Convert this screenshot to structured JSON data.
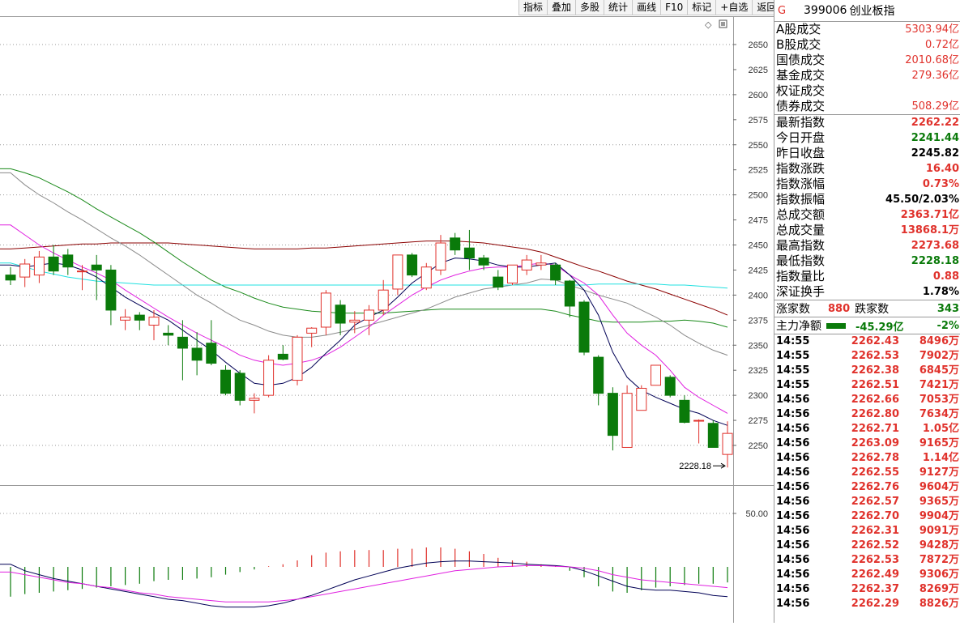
{
  "toolbar": {
    "buttons": [
      "指标",
      "叠加",
      "多股",
      "统计",
      "画线",
      "F10",
      "标记",
      "+自选",
      "返回"
    ]
  },
  "header": {
    "marker": "G",
    "code": "399006",
    "name": "创业板指"
  },
  "turnover": [
    {
      "label": "A股成交",
      "value": "5303.94亿"
    },
    {
      "label": "B股成交",
      "value": "0.72亿"
    },
    {
      "label": "国债成交",
      "value": "2010.68亿"
    },
    {
      "label": "基金成交",
      "value": "279.36亿"
    },
    {
      "label": "权证成交",
      "value": ""
    },
    {
      "label": "债券成交",
      "value": "508.29亿"
    }
  ],
  "quote": [
    {
      "label": "最新指数",
      "value": "2262.22",
      "color": "red"
    },
    {
      "label": "今日开盘",
      "value": "2241.44",
      "color": "green"
    },
    {
      "label": "昨日收盘",
      "value": "2245.82",
      "color": "black"
    },
    {
      "label": "指数涨跌",
      "value": "16.40",
      "color": "red"
    },
    {
      "label": "指数涨幅",
      "value": "0.73%",
      "color": "red"
    },
    {
      "label": "指数振幅",
      "value": "45.50/2.03%",
      "color": "black"
    },
    {
      "label": "总成交额",
      "value": "2363.71亿",
      "color": "red"
    },
    {
      "label": "总成交量",
      "value": "13868.1万",
      "color": "red"
    },
    {
      "label": "最高指数",
      "value": "2273.68",
      "color": "red"
    },
    {
      "label": "最低指数",
      "value": "2228.18",
      "color": "green"
    },
    {
      "label": "指数量比",
      "value": "0.88",
      "color": "red"
    },
    {
      "label": "深证换手",
      "value": "1.78%",
      "color": "black"
    }
  ],
  "breadth": {
    "up_label": "涨家数",
    "up_value": "880",
    "down_label": "跌家数",
    "down_value": "343"
  },
  "flow": {
    "label": "主力净额",
    "value": "-45.29亿",
    "pct": "-2%"
  },
  "ticks": [
    {
      "time": "14:55",
      "price": "2262.43",
      "amount": "8496万"
    },
    {
      "time": "14:55",
      "price": "2262.53",
      "amount": "7902万"
    },
    {
      "time": "14:55",
      "price": "2262.38",
      "amount": "6845万"
    },
    {
      "time": "14:55",
      "price": "2262.51",
      "amount": "7421万"
    },
    {
      "time": "14:56",
      "price": "2262.66",
      "amount": "7053万"
    },
    {
      "time": "14:56",
      "price": "2262.80",
      "amount": "7634万"
    },
    {
      "time": "14:56",
      "price": "2262.71",
      "amount": "1.05亿"
    },
    {
      "time": "14:56",
      "price": "2263.09",
      "amount": "9165万"
    },
    {
      "time": "14:56",
      "price": "2262.78",
      "amount": "1.14亿"
    },
    {
      "time": "14:56",
      "price": "2262.55",
      "amount": "9127万"
    },
    {
      "time": "14:56",
      "price": "2262.76",
      "amount": "9604万"
    },
    {
      "time": "14:56",
      "price": "2262.57",
      "amount": "9365万"
    },
    {
      "time": "14:56",
      "price": "2262.70",
      "amount": "9904万"
    },
    {
      "time": "14:56",
      "price": "2262.31",
      "amount": "9091万"
    },
    {
      "time": "14:56",
      "price": "2262.52",
      "amount": "9428万"
    },
    {
      "time": "14:56",
      "price": "2262.53",
      "amount": "7872万"
    },
    {
      "time": "14:56",
      "price": "2262.49",
      "amount": "9306万"
    },
    {
      "time": "14:56",
      "price": "2262.37",
      "amount": "8269万"
    },
    {
      "time": "14:56",
      "price": "2262.29",
      "amount": "8826万"
    }
  ],
  "colors": {
    "up": "#e0322c",
    "down": "#0a7a0a",
    "ma5": "#000055",
    "ma10": "#e020e0",
    "ma20": "#8a8a8a",
    "ma30": "#1a8a1a",
    "ma60": "#20e0e0",
    "ma120": "#8b0000"
  },
  "chart_data": {
    "type": "candlestick",
    "y_axis_ticks": [
      2650,
      2625,
      2600,
      2575,
      2550,
      2525,
      2500,
      2475,
      2450,
      2425,
      2400,
      2375,
      2350,
      2325,
      2300,
      2275,
      2250
    ],
    "ylim": [
      2228,
      2650
    ],
    "low_annotation": "2228.18",
    "candles": [
      {
        "o": 2420,
        "h": 2428,
        "l": 2410,
        "c": 2415
      },
      {
        "o": 2418,
        "h": 2436,
        "l": 2408,
        "c": 2431
      },
      {
        "o": 2420,
        "h": 2444,
        "l": 2412,
        "c": 2438
      },
      {
        "o": 2438,
        "h": 2450,
        "l": 2420,
        "c": 2424
      },
      {
        "o": 2440,
        "h": 2446,
        "l": 2420,
        "c": 2428
      },
      {
        "o": 2424,
        "h": 2430,
        "l": 2405,
        "c": 2424
      },
      {
        "o": 2430,
        "h": 2440,
        "l": 2395,
        "c": 2425
      },
      {
        "o": 2425,
        "h": 2430,
        "l": 2370,
        "c": 2385
      },
      {
        "o": 2375,
        "h": 2386,
        "l": 2365,
        "c": 2378
      },
      {
        "o": 2380,
        "h": 2383,
        "l": 2365,
        "c": 2375
      },
      {
        "o": 2370,
        "h": 2385,
        "l": 2355,
        "c": 2378
      },
      {
        "o": 2362,
        "h": 2370,
        "l": 2350,
        "c": 2360
      },
      {
        "o": 2358,
        "h": 2375,
        "l": 2315,
        "c": 2347
      },
      {
        "o": 2347,
        "h": 2363,
        "l": 2320,
        "c": 2335
      },
      {
        "o": 2352,
        "h": 2375,
        "l": 2330,
        "c": 2332
      },
      {
        "o": 2325,
        "h": 2330,
        "l": 2300,
        "c": 2302
      },
      {
        "o": 2322,
        "h": 2325,
        "l": 2290,
        "c": 2295
      },
      {
        "o": 2295,
        "h": 2302,
        "l": 2282,
        "c": 2297
      },
      {
        "o": 2300,
        "h": 2340,
        "l": 2298,
        "c": 2335
      },
      {
        "o": 2341,
        "h": 2350,
        "l": 2335,
        "c": 2336
      },
      {
        "o": 2315,
        "h": 2360,
        "l": 2310,
        "c": 2358
      },
      {
        "o": 2362,
        "h": 2368,
        "l": 2348,
        "c": 2367
      },
      {
        "o": 2368,
        "h": 2405,
        "l": 2360,
        "c": 2402
      },
      {
        "o": 2390,
        "h": 2395,
        "l": 2360,
        "c": 2372
      },
      {
        "o": 2373,
        "h": 2384,
        "l": 2362,
        "c": 2375
      },
      {
        "o": 2375,
        "h": 2390,
        "l": 2360,
        "c": 2385
      },
      {
        "o": 2385,
        "h": 2415,
        "l": 2380,
        "c": 2405
      },
      {
        "o": 2406,
        "h": 2440,
        "l": 2400,
        "c": 2440
      },
      {
        "o": 2440,
        "h": 2442,
        "l": 2418,
        "c": 2420
      },
      {
        "o": 2407,
        "h": 2432,
        "l": 2405,
        "c": 2428
      },
      {
        "o": 2425,
        "h": 2460,
        "l": 2420,
        "c": 2452
      },
      {
        "o": 2457,
        "h": 2462,
        "l": 2440,
        "c": 2445
      },
      {
        "o": 2447,
        "h": 2465,
        "l": 2425,
        "c": 2437
      },
      {
        "o": 2437,
        "h": 2440,
        "l": 2425,
        "c": 2430
      },
      {
        "o": 2418,
        "h": 2425,
        "l": 2405,
        "c": 2408
      },
      {
        "o": 2412,
        "h": 2430,
        "l": 2410,
        "c": 2430
      },
      {
        "o": 2425,
        "h": 2440,
        "l": 2420,
        "c": 2435
      },
      {
        "o": 2430,
        "h": 2440,
        "l": 2425,
        "c": 2432
      },
      {
        "o": 2430,
        "h": 2432,
        "l": 2410,
        "c": 2415
      },
      {
        "o": 2414,
        "h": 2415,
        "l": 2378,
        "c": 2389
      },
      {
        "o": 2393,
        "h": 2395,
        "l": 2340,
        "c": 2343
      },
      {
        "o": 2338,
        "h": 2340,
        "l": 2290,
        "c": 2302
      },
      {
        "o": 2302,
        "h": 2308,
        "l": 2245,
        "c": 2260
      },
      {
        "o": 2248,
        "h": 2310,
        "l": 2248,
        "c": 2302
      },
      {
        "o": 2285,
        "h": 2310,
        "l": 2285,
        "c": 2307
      },
      {
        "o": 2310,
        "h": 2330,
        "l": 2310,
        "c": 2330
      },
      {
        "o": 2318,
        "h": 2320,
        "l": 2298,
        "c": 2300
      },
      {
        "o": 2295,
        "h": 2300,
        "l": 2272,
        "c": 2273
      },
      {
        "o": 2275,
        "h": 2276,
        "l": 2252,
        "c": 2275
      },
      {
        "o": 2272,
        "h": 2275,
        "l": 2248,
        "c": 2248
      },
      {
        "o": 2241,
        "h": 2274,
        "l": 2228,
        "c": 2262
      }
    ],
    "ma_lines": {
      "ma5": [
        2430,
        2428,
        2430,
        2432,
        2430,
        2425,
        2418,
        2408,
        2398,
        2390,
        2382,
        2375,
        2365,
        2355,
        2345,
        2333,
        2322,
        2312,
        2310,
        2312,
        2318,
        2328,
        2342,
        2355,
        2370,
        2378,
        2385,
        2398,
        2412,
        2422,
        2432,
        2437,
        2436,
        2434,
        2430,
        2428,
        2428,
        2430,
        2432,
        2420,
        2405,
        2380,
        2343,
        2318,
        2305,
        2298,
        2292,
        2286,
        2282,
        2275,
        2270
      ],
      "ma10": [
        2470,
        2460,
        2450,
        2442,
        2435,
        2428,
        2422,
        2415,
        2405,
        2396,
        2387,
        2378,
        2370,
        2362,
        2355,
        2348,
        2340,
        2335,
        2332,
        2330,
        2332,
        2335,
        2340,
        2348,
        2358,
        2368,
        2380,
        2390,
        2400,
        2408,
        2415,
        2420,
        2424,
        2427,
        2428,
        2428,
        2430,
        2432,
        2430,
        2420,
        2412,
        2400,
        2380,
        2362,
        2350,
        2340,
        2325,
        2308,
        2298,
        2290,
        2282
      ],
      "ma20": [
        2522,
        2510,
        2500,
        2492,
        2483,
        2475,
        2466,
        2457,
        2449,
        2440,
        2430,
        2420,
        2410,
        2400,
        2392,
        2383,
        2375,
        2370,
        2364,
        2360,
        2358,
        2358,
        2360,
        2363,
        2366,
        2370,
        2374,
        2378,
        2382,
        2386,
        2392,
        2398,
        2402,
        2406,
        2408,
        2410,
        2412,
        2416,
        2415,
        2410,
        2405,
        2400,
        2396,
        2392,
        2385,
        2378,
        2370,
        2360,
        2352,
        2345,
        2340
      ],
      "ma30": [
        2526,
        2522,
        2517,
        2510,
        2503,
        2495,
        2486,
        2478,
        2470,
        2462,
        2453,
        2443,
        2433,
        2424,
        2415,
        2408,
        2403,
        2397,
        2392,
        2388,
        2386,
        2384,
        2383,
        2382,
        2382,
        2382,
        2382,
        2383,
        2384,
        2385,
        2386,
        2386,
        2386,
        2386,
        2386,
        2386,
        2386,
        2386,
        2384,
        2380,
        2377,
        2374,
        2373,
        2373,
        2373,
        2374,
        2374,
        2375,
        2374,
        2372,
        2368
      ],
      "ma60": [
        2432,
        2428,
        2424,
        2421,
        2418,
        2416,
        2414,
        2413,
        2412,
        2411,
        2410,
        2410,
        2410,
        2410,
        2410,
        2410,
        2410,
        2410,
        2410,
        2410,
        2410,
        2410,
        2410,
        2410,
        2410,
        2410,
        2410,
        2410,
        2410,
        2410,
        2410,
        2410,
        2410,
        2410,
        2410,
        2410,
        2410,
        2410,
        2410,
        2410,
        2410,
        2411,
        2411,
        2411,
        2411,
        2411,
        2410,
        2410,
        2409,
        2408,
        2407
      ],
      "ma120": [
        2446,
        2447,
        2448,
        2449,
        2450,
        2451,
        2451,
        2452,
        2452,
        2452,
        2452,
        2452,
        2451,
        2450,
        2449,
        2448,
        2447,
        2446,
        2446,
        2446,
        2446,
        2447,
        2447,
        2448,
        2449,
        2450,
        2451,
        2452,
        2453,
        2454,
        2454,
        2454,
        2453,
        2452,
        2450,
        2448,
        2446,
        2443,
        2438,
        2433,
        2428,
        2424,
        2419,
        2414,
        2410,
        2406,
        2401,
        2396,
        2391,
        2386,
        2380
      ]
    },
    "indicator": {
      "y_axis_ticks": [
        50.0
      ],
      "bars": [
        -2.3,
        -2.1,
        -2.0,
        -1.9,
        -1.8,
        -1.7,
        -1.6,
        -1.5,
        -1.4,
        -1.3,
        -1.1,
        -1.0,
        -1.0,
        -0.9,
        -0.8,
        -0.6,
        -0.4,
        -0.2,
        0.05,
        0.2,
        0.5,
        0.9,
        1.1,
        1.2,
        1.3,
        1.3,
        1.3,
        1.4,
        1.4,
        1.5,
        1.5,
        1.4,
        1.2,
        1.0,
        0.7,
        0.5,
        0.4,
        0.2,
        0.05,
        -0.3,
        -0.8,
        -1.5,
        -1.9,
        -2.0,
        -1.8,
        -1.6,
        -1.5,
        -1.4,
        -1.3,
        -1.3,
        -1.2
      ],
      "line1": [
        0.2,
        -0.3,
        -0.6,
        -0.9,
        -1.1,
        -1.3,
        -1.5,
        -1.7,
        -1.9,
        -2.1,
        -2.3,
        -2.5,
        -2.6,
        -2.8,
        -3.0,
        -3.1,
        -3.1,
        -3.1,
        -3.0,
        -2.8,
        -2.5,
        -2.2,
        -1.8,
        -1.4,
        -1.0,
        -0.7,
        -0.4,
        -0.1,
        0.1,
        0.3,
        0.4,
        0.45,
        0.45,
        0.4,
        0.35,
        0.3,
        0.2,
        0.15,
        0.1,
        0.0,
        -0.3,
        -0.7,
        -1.1,
        -1.5,
        -1.7,
        -1.8,
        -1.8,
        -1.9,
        -2.0,
        -2.2,
        -2.3
      ],
      "line2": [
        -0.4,
        -0.6,
        -0.8,
        -1.0,
        -1.2,
        -1.3,
        -1.5,
        -1.6,
        -1.8,
        -2.0,
        -2.1,
        -2.3,
        -2.4,
        -2.5,
        -2.6,
        -2.7,
        -2.7,
        -2.7,
        -2.7,
        -2.6,
        -2.5,
        -2.3,
        -2.1,
        -1.9,
        -1.7,
        -1.5,
        -1.3,
        -1.1,
        -0.9,
        -0.7,
        -0.5,
        -0.3,
        -0.2,
        -0.1,
        0.0,
        0.05,
        0.1,
        0.1,
        0.05,
        0.0,
        -0.1,
        -0.3,
        -0.6,
        -0.8,
        -1.0,
        -1.1,
        -1.2,
        -1.3,
        -1.4,
        -1.5,
        -1.6
      ]
    }
  }
}
